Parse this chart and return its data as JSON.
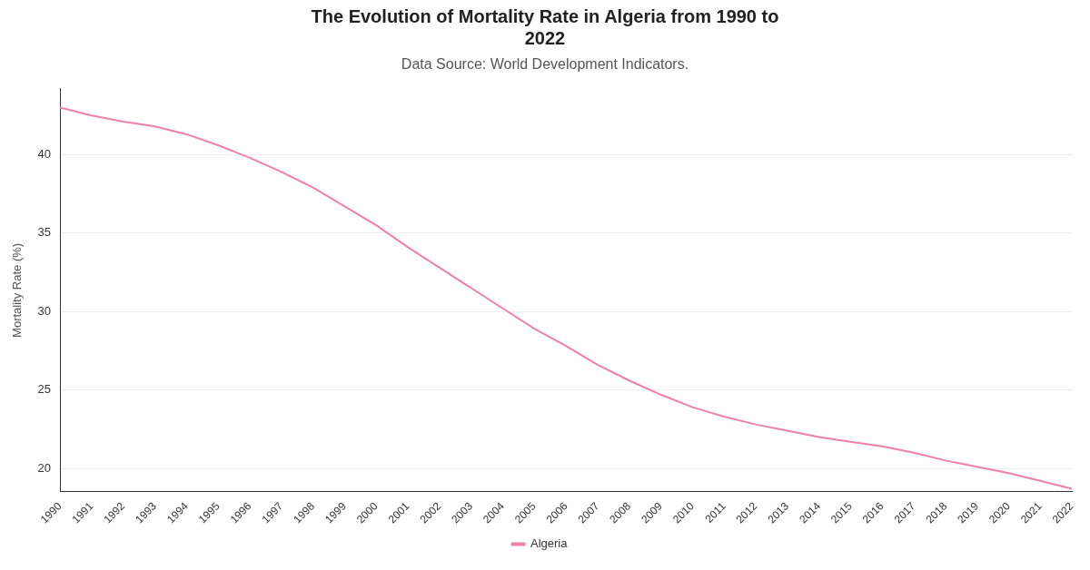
{
  "chart_data": {
    "type": "line",
    "title": "The Evolution of Mortality Rate in Algeria from 1990 to 2022",
    "subtitle": "Data Source: World Development Indicators.",
    "ylabel": "Mortality Rate (%)",
    "categories": [
      "1990",
      "1991",
      "1992",
      "1993",
      "1994",
      "1995",
      "1996",
      "1997",
      "1998",
      "1999",
      "2000",
      "2001",
      "2002",
      "2003",
      "2004",
      "2005",
      "2006",
      "2007",
      "2008",
      "2009",
      "2010",
      "2011",
      "2012",
      "2013",
      "2014",
      "2015",
      "2016",
      "2017",
      "2018",
      "2019",
      "2020",
      "2021",
      "2022"
    ],
    "series": [
      {
        "name": "Algeria",
        "color": "#f07fab",
        "values": [
          43.0,
          42.5,
          42.1,
          41.8,
          41.3,
          40.6,
          39.8,
          38.9,
          37.9,
          36.7,
          35.5,
          34.1,
          32.8,
          31.5,
          30.2,
          28.9,
          27.8,
          26.6,
          25.6,
          24.7,
          23.9,
          23.3,
          22.8,
          22.4,
          22.0,
          21.7,
          21.4,
          21.0,
          20.5,
          20.1,
          19.7,
          19.2,
          18.7
        ]
      }
    ],
    "ylim": [
      18.5,
      44.2
    ],
    "yticks": [
      20,
      25,
      30,
      35,
      40
    ],
    "grid": "y",
    "legend": "bottom",
    "marker": "none",
    "line_style": "solid"
  }
}
